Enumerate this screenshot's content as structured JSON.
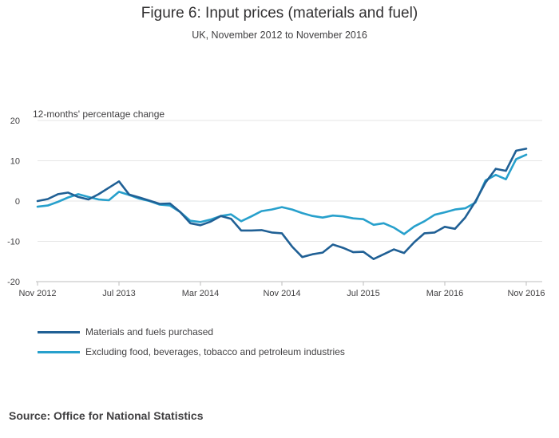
{
  "header": {
    "title": "Figure 6: Input prices (materials and fuel)",
    "subtitle": "UK, November 2012 to November 2016"
  },
  "source": "Source: Office for National Statistics",
  "colors": {
    "series_dark": "#206095",
    "series_light": "#27a0cc",
    "grid": "#e6e6e6",
    "axis": "#bebebe"
  },
  "chart_data": {
    "type": "line",
    "title": "Figure 6: Input prices (materials and fuel)",
    "subtitle": "UK, November 2012 to November 2016",
    "ylabel": "12-months' percentage change",
    "xlabel": "",
    "ylim": [
      -20,
      20
    ],
    "yticks": [
      -20,
      -10,
      0,
      10,
      20
    ],
    "x_tick_labels": [
      {
        "index": 0,
        "label": "Nov 2012"
      },
      {
        "index": 8,
        "label": "Jul 2013"
      },
      {
        "index": 16,
        "label": "Mar 2014"
      },
      {
        "index": 24,
        "label": "Nov 2014"
      },
      {
        "index": 32,
        "label": "Jul 2015"
      },
      {
        "index": 40,
        "label": "Mar 2016"
      },
      {
        "index": 48,
        "label": "Nov 2016"
      }
    ],
    "legend_position": "bottom-left",
    "series": [
      {
        "name": "Materials and fuels purchased",
        "color": "#206095",
        "values": [
          0.0,
          0.5,
          1.7,
          2.1,
          1.0,
          0.4,
          1.7,
          3.3,
          4.9,
          1.6,
          0.9,
          0.1,
          -0.7,
          -0.6,
          -2.7,
          -5.5,
          -6.0,
          -5.1,
          -3.7,
          -4.4,
          -7.3,
          -7.3,
          -7.2,
          -7.8,
          -8.0,
          -11.3,
          -13.9,
          -13.2,
          -12.8,
          -10.8,
          -11.6,
          -12.7,
          -12.6,
          -14.4,
          -13.2,
          -12.0,
          -12.9,
          -10.2,
          -8.0,
          -7.8,
          -6.4,
          -6.9,
          -4.1,
          -0.1,
          4.6,
          8.0,
          7.5,
          12.5,
          13.0
        ]
      },
      {
        "name": "Excluding food, beverages, tobacco and petroleum industries",
        "color": "#27a0cc",
        "values": [
          -1.4,
          -1.1,
          -0.2,
          0.9,
          1.7,
          1.0,
          0.4,
          0.2,
          2.3,
          1.5,
          0.6,
          0.0,
          -0.9,
          -1.1,
          -2.7,
          -4.9,
          -5.2,
          -4.6,
          -3.7,
          -3.3,
          -5.0,
          -3.8,
          -2.5,
          -2.1,
          -1.5,
          -2.1,
          -3.0,
          -3.7,
          -4.1,
          -3.6,
          -3.8,
          -4.3,
          -4.5,
          -5.9,
          -5.5,
          -6.6,
          -8.2,
          -6.3,
          -5.0,
          -3.4,
          -2.8,
          -2.1,
          -1.8,
          -0.4,
          5.1,
          6.5,
          5.4,
          10.4,
          11.5
        ]
      }
    ]
  }
}
